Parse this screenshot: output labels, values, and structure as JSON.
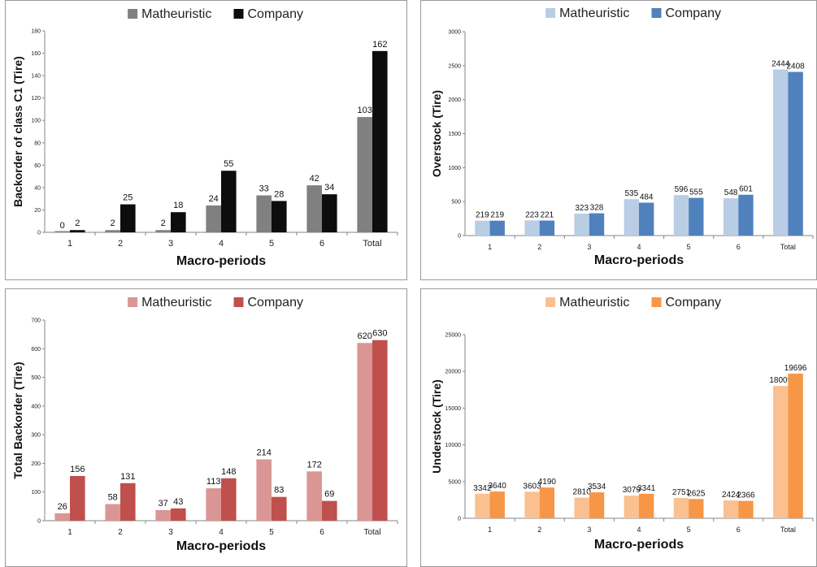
{
  "chart_data": [
    {
      "type": "bar",
      "title": "",
      "xlabel": "Macro-periods",
      "ylabel": "Backorder of class C1 (Tire)",
      "categories": [
        "1",
        "2",
        "3",
        "4",
        "5",
        "6",
        "Total"
      ],
      "series": [
        {
          "name": "Matheuristic",
          "values": [
            0,
            2,
            2,
            24,
            33,
            42,
            103
          ],
          "color": "#808080"
        },
        {
          "name": "Company",
          "values": [
            2,
            25,
            18,
            55,
            28,
            34,
            162
          ],
          "color": "#0d0d0d"
        }
      ],
      "ylim": [
        0,
        180
      ],
      "yticks": [
        "0",
        "20",
        "40",
        "60",
        "80",
        "100",
        "120",
        "140",
        "160",
        "180"
      ],
      "legend": "top"
    },
    {
      "type": "bar",
      "title": "",
      "xlabel": "Macro-periods",
      "ylabel": "Overstock (Tire)",
      "categories": [
        "1",
        "2",
        "3",
        "4",
        "5",
        "6",
        "Total"
      ],
      "series": [
        {
          "name": "Matheuristic",
          "values": [
            219,
            223,
            323,
            535,
            596,
            548,
            2444
          ],
          "color": "#b9cde5"
        },
        {
          "name": "Company",
          "values": [
            219,
            221,
            328,
            484,
            555,
            601,
            2408
          ],
          "color": "#4f81bd"
        }
      ],
      "ylim": [
        0,
        3000
      ],
      "yticks": [
        "0",
        "500",
        "1000",
        "1500",
        "2000",
        "2500",
        "3000"
      ],
      "legend": "top"
    },
    {
      "type": "bar",
      "title": "",
      "xlabel": "Macro-periods",
      "ylabel": "Total Backorder (Tire)",
      "categories": [
        "1",
        "2",
        "3",
        "4",
        "5",
        "6",
        "Total"
      ],
      "series": [
        {
          "name": "Matheuristic",
          "values": [
            26,
            58,
            37,
            113,
            214,
            172,
            620
          ],
          "color": "#da9694"
        },
        {
          "name": "Company",
          "values": [
            156,
            131,
            43,
            148,
            83,
            69,
            630
          ],
          "color": "#c0504d"
        }
      ],
      "ylim": [
        0,
        700
      ],
      "yticks": [
        "0",
        "100",
        "200",
        "300",
        "400",
        "500",
        "600",
        "700"
      ],
      "legend": "top"
    },
    {
      "type": "bar",
      "title": "",
      "xlabel": "Macro-periods",
      "ylabel": "Understock (Tire)",
      "categories": [
        "1",
        "2",
        "3",
        "4",
        "5",
        "6",
        "Total"
      ],
      "series": [
        {
          "name": "Matheuristic",
          "values": [
            3342,
            3603,
            2810,
            3079,
            2751,
            2424,
            18009
          ],
          "color": "#fac090"
        },
        {
          "name": "Company",
          "values": [
            3640,
            4190,
            3534,
            3341,
            2625,
            2366,
            19696
          ],
          "color": "#f79646"
        }
      ],
      "ylim": [
        0,
        25000
      ],
      "yticks": [
        "0",
        "5000",
        "10000",
        "15000",
        "20000",
        "25000"
      ],
      "legend": "top"
    }
  ]
}
